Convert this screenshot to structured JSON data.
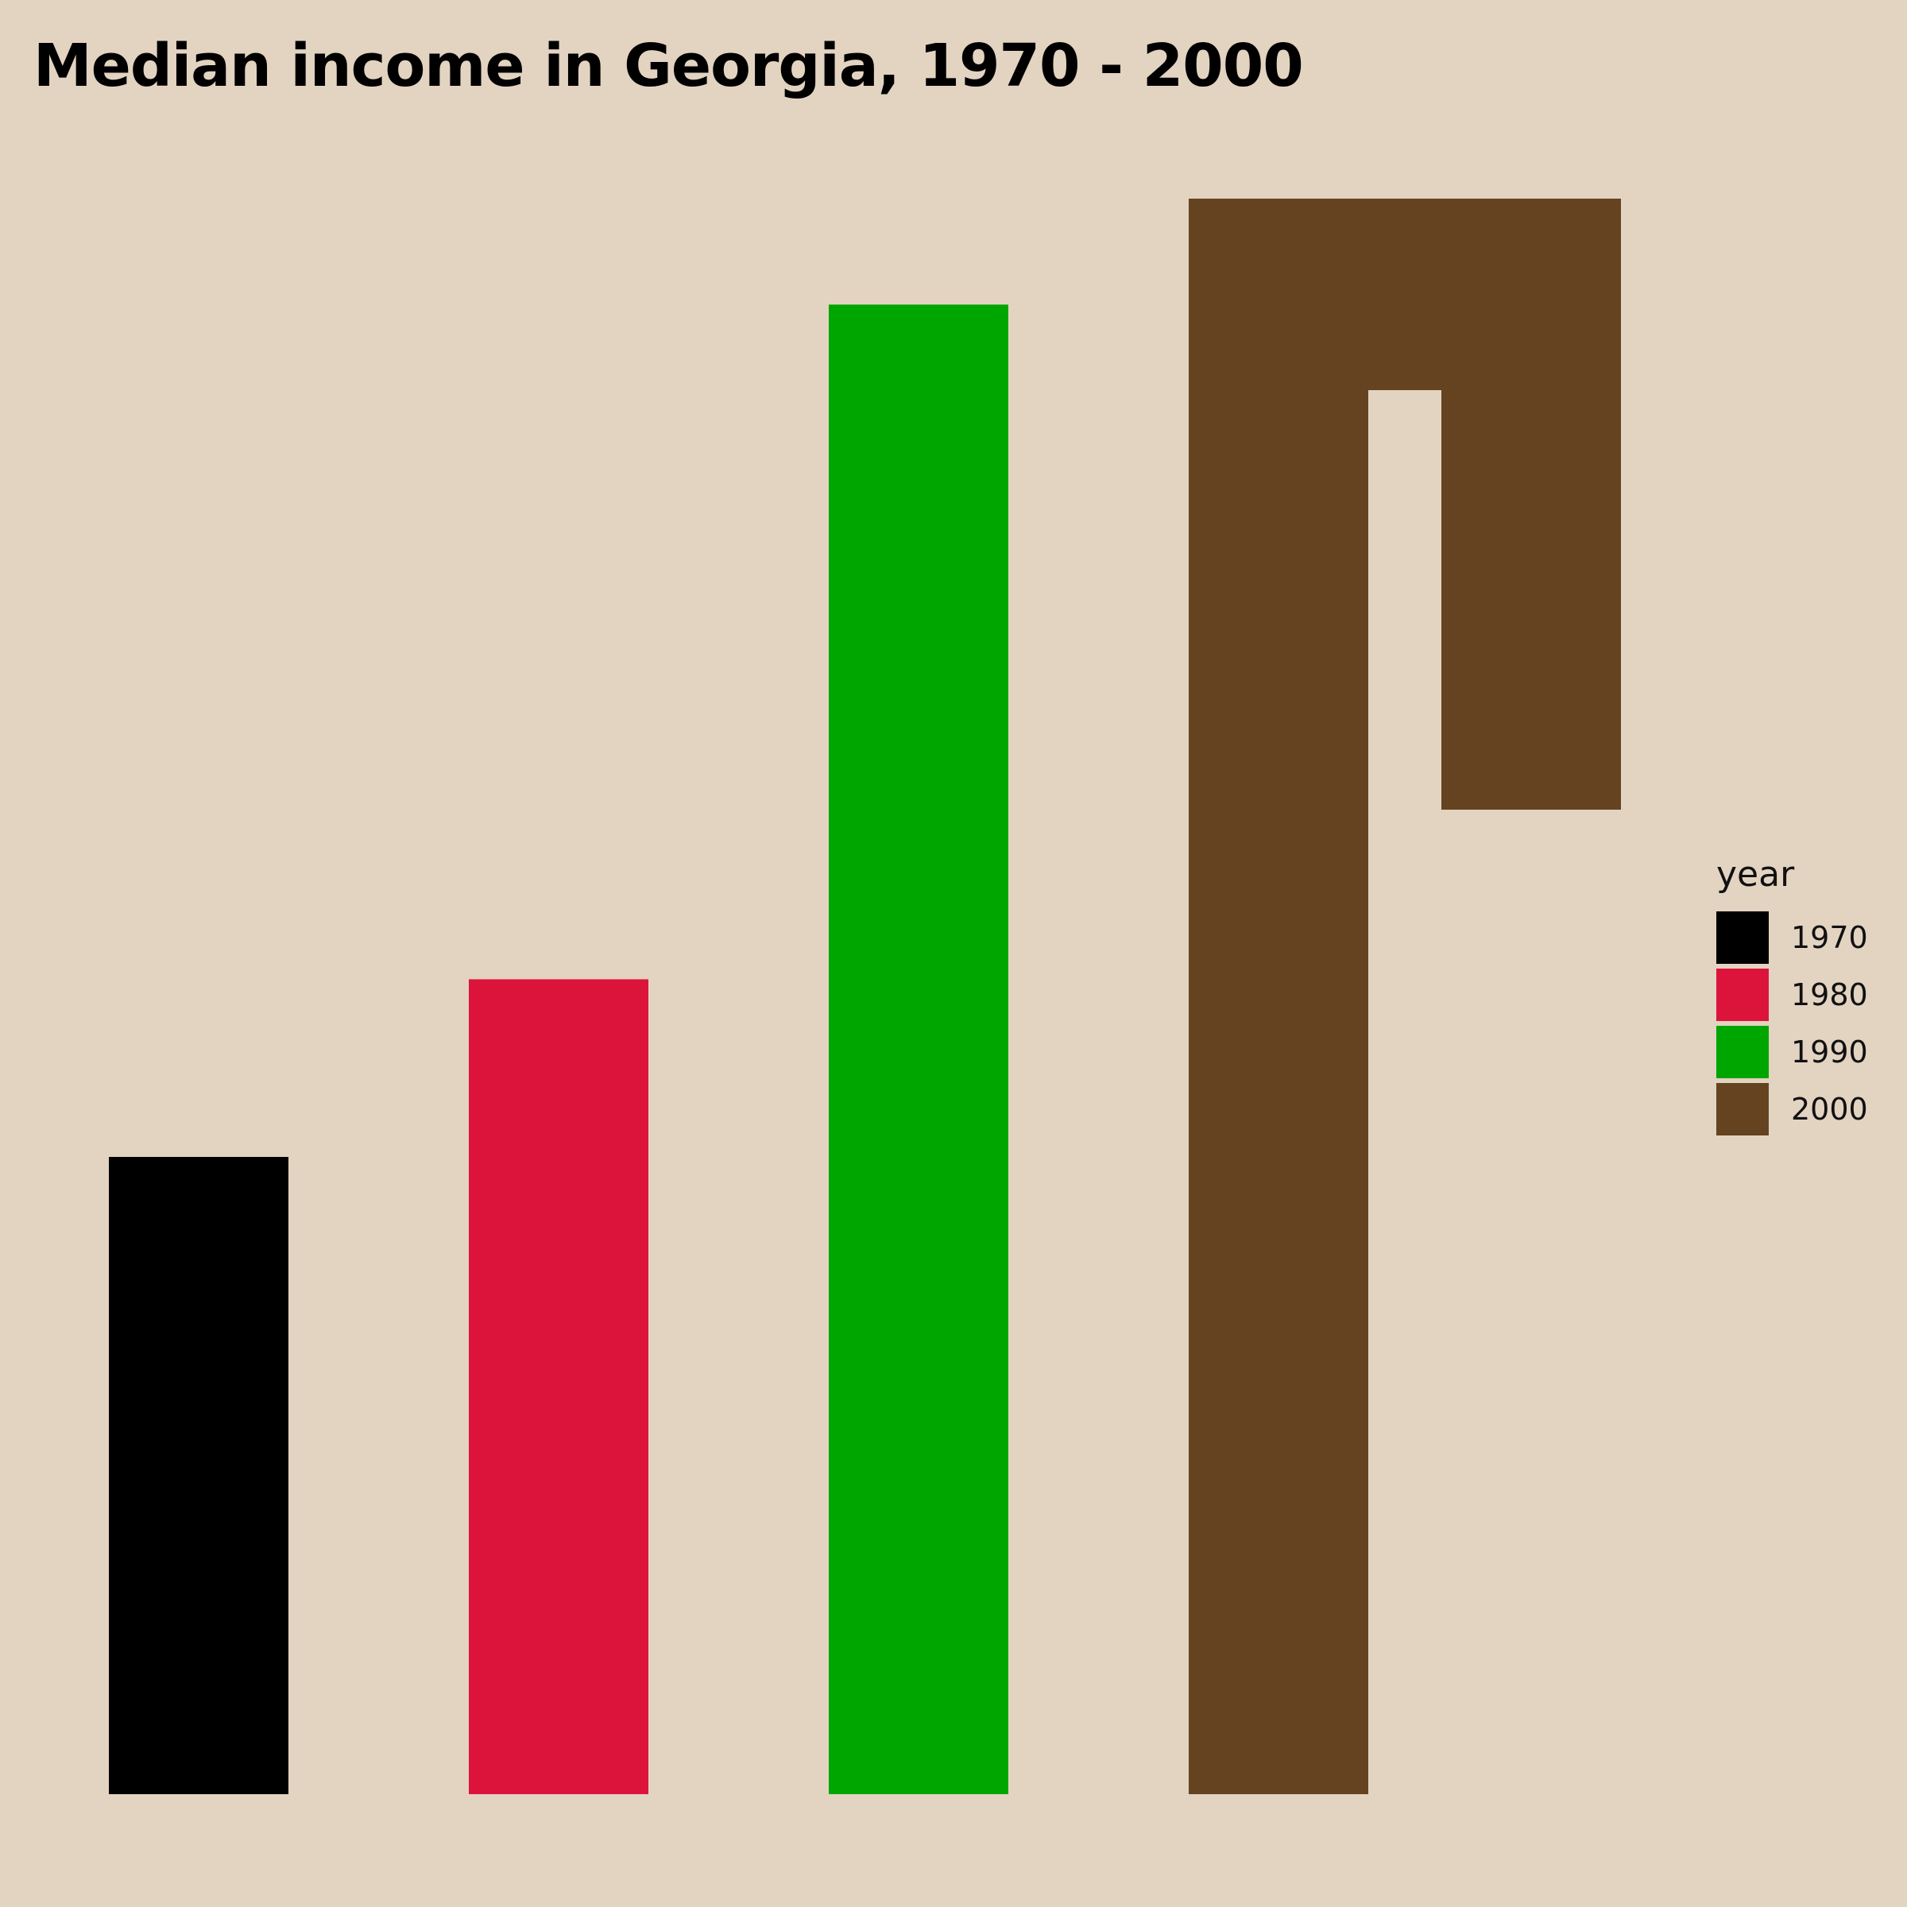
{
  "chart_data": {
    "type": "bar",
    "title": "Median income in Georgia, 1970 - 2000",
    "xlabel": "",
    "ylabel": "",
    "grid": false,
    "axes_visible": false,
    "legend_title": "year",
    "legend_placement": "right",
    "categories": [
      "1970",
      "1980",
      "1990",
      "2000"
    ],
    "values": [
      8000,
      10230,
      18700,
      20030
    ],
    "ylim": [
      0,
      20030
    ],
    "colors": [
      "#000000",
      "#dc143c",
      "#00a600",
      "#654321"
    ],
    "background": "#e3d3c1",
    "shapes": [
      "rectangle",
      "rectangle",
      "rectangle",
      "hook"
    ],
    "series": [
      {
        "name": "1970",
        "values": [
          8000,
          null,
          null,
          null
        ]
      },
      {
        "name": "1980",
        "values": [
          null,
          10230,
          null,
          null
        ]
      },
      {
        "name": "1990",
        "values": [
          null,
          null,
          18700,
          null
        ]
      },
      {
        "name": "2000",
        "values": [
          null,
          null,
          null,
          20030
        ]
      }
    ]
  }
}
